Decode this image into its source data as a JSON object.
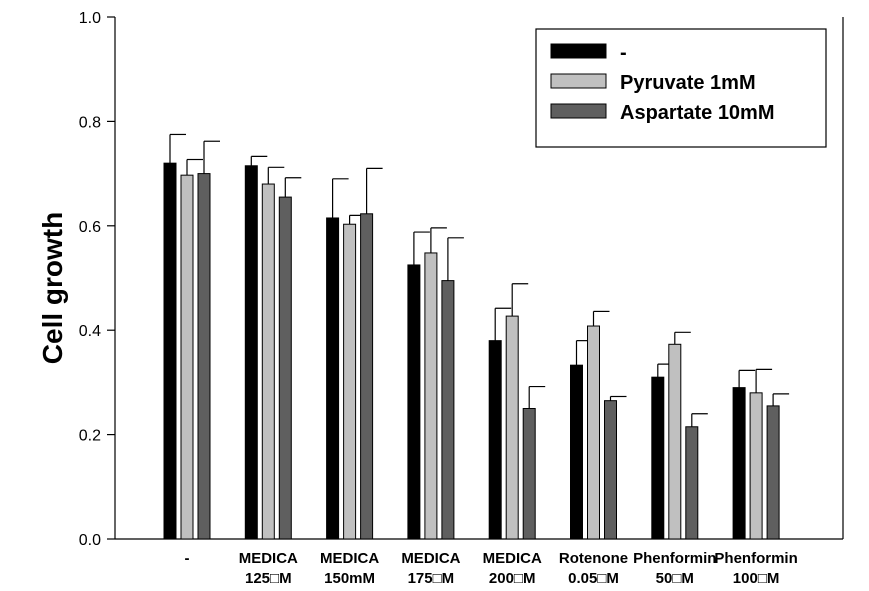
{
  "chart_data": {
    "type": "bar",
    "ylabel": "Cell growth",
    "xlabel": "",
    "title": "",
    "ylim": [
      0.0,
      1.0
    ],
    "yticks": [
      "0.0",
      "0.2",
      "0.4",
      "0.6",
      "0.8",
      "1.0"
    ],
    "ytick_values": [
      0.0,
      0.2,
      0.4,
      0.6,
      0.8,
      1.0
    ],
    "grid": false,
    "legend_position": "top-right",
    "categories": [
      [
        "-",
        ""
      ],
      [
        "MEDICA",
        "125□M"
      ],
      [
        "MEDICA",
        "150mM"
      ],
      [
        "MEDICA",
        "175□M"
      ],
      [
        "MEDICA",
        "200□M"
      ],
      [
        "Rotenone",
        "0.05□M"
      ],
      [
        "Phenformin",
        "50□M"
      ],
      [
        "Phenformin",
        "100□M"
      ]
    ],
    "series": [
      {
        "name": "-",
        "color": "#000000",
        "values": [
          0.72,
          0.715,
          0.615,
          0.525,
          0.38,
          0.333,
          0.31,
          0.29
        ],
        "errors": [
          0.055,
          0.018,
          0.075,
          0.063,
          0.062,
          0.047,
          0.025,
          0.033
        ]
      },
      {
        "name": "Pyruvate 1mM",
        "color": "#c0c0c0",
        "values": [
          0.697,
          0.68,
          0.603,
          0.548,
          0.427,
          0.408,
          0.373,
          0.28
        ],
        "errors": [
          0.03,
          0.032,
          0.017,
          0.048,
          0.062,
          0.028,
          0.023,
          0.045
        ]
      },
      {
        "name": "Aspartate 10mM",
        "color": "#5f5f5f",
        "values": [
          0.7,
          0.655,
          0.623,
          0.495,
          0.25,
          0.265,
          0.215,
          0.255
        ],
        "errors": [
          0.062,
          0.037,
          0.087,
          0.082,
          0.042,
          0.008,
          0.025,
          0.023
        ]
      }
    ]
  }
}
